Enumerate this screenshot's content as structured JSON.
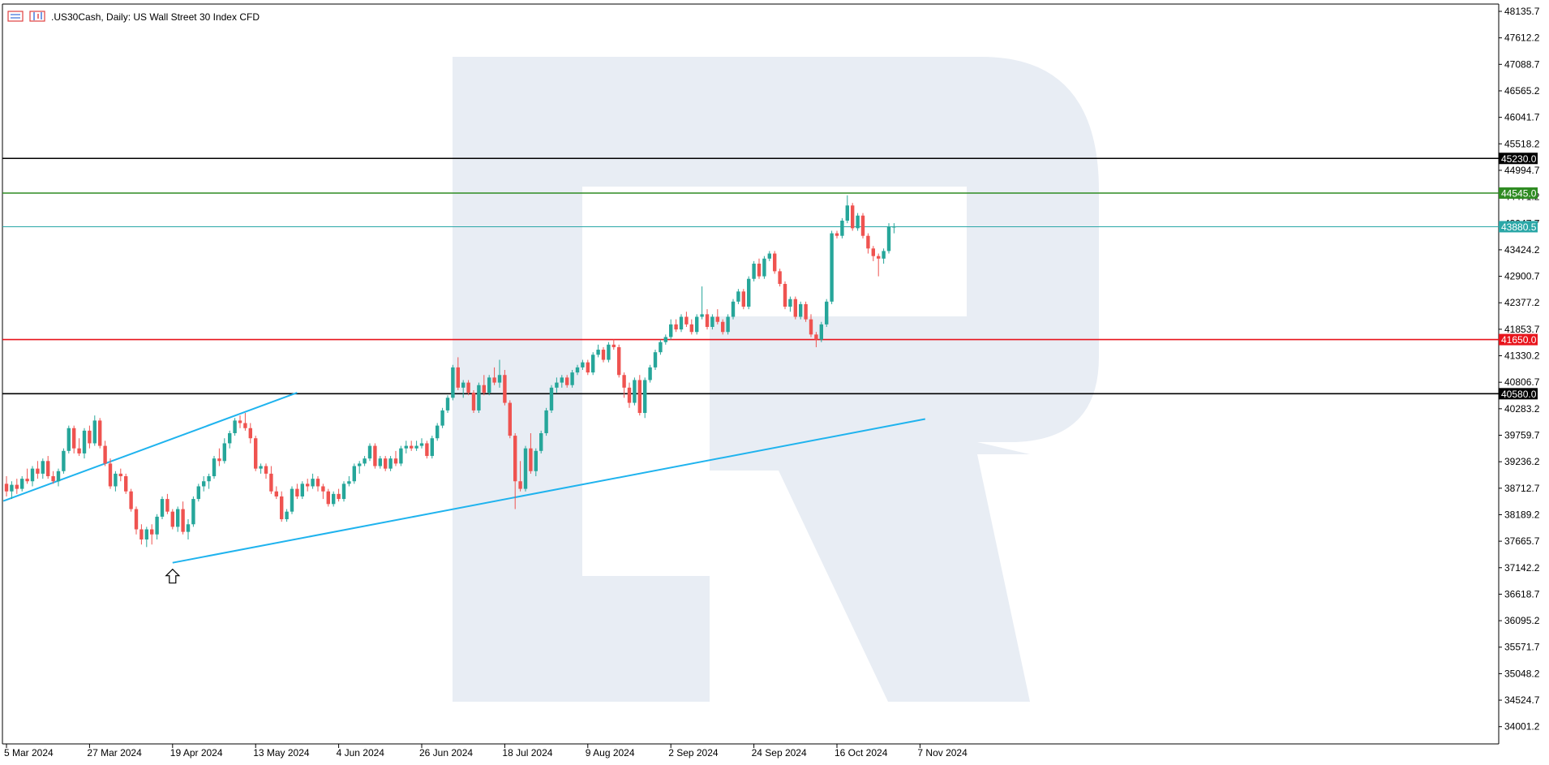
{
  "header": {
    "symbol_text": ".US30Cash, Daily:  US Wall Street 30 Index CFD"
  },
  "icons": {
    "menu": "chart-menu-icon",
    "chart_type": "chart-type-icon",
    "arrow": "up-arrow-icon",
    "watermark": "broker-logo-watermark"
  },
  "colors": {
    "background": "#ffffff",
    "bull": "#26a69a",
    "bear": "#ef5350",
    "trendline": "#1fb3ee",
    "watermark": "#e8edf4",
    "resistance": "#2e8b22",
    "support": "#e8141c",
    "key_level": "#000000",
    "current_price": "#2aa7a7"
  },
  "chart_data": {
    "type": "candlestick",
    "title": ".US30Cash, Daily:  US Wall Street 30 Index CFD",
    "xlabel": "",
    "ylabel": "",
    "ylim": [
      33660,
      48280
    ],
    "y_ticks": [
      "48135.7",
      "47612.2",
      "47088.7",
      "46565.2",
      "46041.7",
      "45518.2",
      "44994.7",
      "44471.2",
      "43947.7",
      "43424.2",
      "42900.7",
      "42377.2",
      "41853.7",
      "41330.2",
      "40806.7",
      "40283.2",
      "39759.7",
      "39236.2",
      "38712.7",
      "38189.2",
      "37665.7",
      "37142.2",
      "36618.7",
      "36095.2",
      "35571.7",
      "35048.2",
      "34524.7",
      "34001.2"
    ],
    "x_ticks": [
      {
        "label": "5 Mar 2024",
        "index": 0
      },
      {
        "label": "27 Mar 2024",
        "index": 16
      },
      {
        "label": "19 Apr 2024",
        "index": 32
      },
      {
        "label": "13 May 2024",
        "index": 48
      },
      {
        "label": "4 Jun 2024",
        "index": 64
      },
      {
        "label": "26 Jun 2024",
        "index": 80
      },
      {
        "label": "18 Jul 2024",
        "index": 96
      },
      {
        "label": "9 Aug 2024",
        "index": 112
      },
      {
        "label": "2 Sep 2024",
        "index": 128
      },
      {
        "label": "24 Sep 2024",
        "index": 144
      },
      {
        "label": "16 Oct 2024",
        "index": 160
      },
      {
        "label": "7 Nov 2024",
        "index": 176
      }
    ],
    "levels": [
      {
        "label": "45230.0",
        "value": 45230.0,
        "color": "#000000"
      },
      {
        "label": "44545.0",
        "value": 44545.0,
        "color": "#2e8b22"
      },
      {
        "label": "43880.5",
        "value": 43880.5,
        "color": "#2aa7a7"
      },
      {
        "label": "41650.0",
        "value": 41650.0,
        "color": "#e8141c"
      },
      {
        "label": "40580.0",
        "value": 40580.0,
        "color": "#000000"
      }
    ],
    "trendlines": [
      {
        "from": {
          "index": -0.6,
          "value": 38460
        },
        "to": {
          "index": 56,
          "value": 40600
        }
      },
      {
        "from": {
          "index": 32,
          "value": 37240
        },
        "to": {
          "index": 177,
          "value": 40080
        }
      }
    ],
    "marker": {
      "type": "up-arrow",
      "index": 32,
      "value": 37240
    },
    "candles": [
      [
        38800,
        38950,
        38550,
        38650
      ],
      [
        38650,
        38850,
        38500,
        38780
      ],
      [
        38780,
        38900,
        38600,
        38700
      ],
      [
        38700,
        38950,
        38650,
        38900
      ],
      [
        38900,
        39100,
        38800,
        38850
      ],
      [
        38850,
        39150,
        38750,
        39100
      ],
      [
        39100,
        39250,
        38900,
        39000
      ],
      [
        39000,
        39300,
        38900,
        39250
      ],
      [
        39250,
        39350,
        38900,
        38950
      ],
      [
        38950,
        39050,
        38800,
        38850
      ],
      [
        38850,
        39100,
        38750,
        39050
      ],
      [
        39050,
        39500,
        39000,
        39450
      ],
      [
        39450,
        39950,
        39400,
        39900
      ],
      [
        39900,
        39950,
        39400,
        39500
      ],
      [
        39500,
        39700,
        39350,
        39400
      ],
      [
        39400,
        39900,
        39300,
        39850
      ],
      [
        39850,
        39950,
        39500,
        39600
      ],
      [
        39600,
        40150,
        39550,
        40050
      ],
      [
        40050,
        40100,
        39500,
        39550
      ],
      [
        39550,
        39650,
        39150,
        39200
      ],
      [
        39200,
        39300,
        38700,
        38750
      ],
      [
        38750,
        39050,
        38650,
        39000
      ],
      [
        39000,
        39100,
        38850,
        38950
      ],
      [
        38950,
        39000,
        38600,
        38650
      ],
      [
        38650,
        38700,
        38250,
        38300
      ],
      [
        38300,
        38350,
        37800,
        37900
      ],
      [
        37900,
        38000,
        37600,
        37700
      ],
      [
        37700,
        37950,
        37550,
        37900
      ],
      [
        37900,
        38000,
        37600,
        37800
      ],
      [
        37800,
        38200,
        37700,
        38150
      ],
      [
        38150,
        38550,
        38100,
        38500
      ],
      [
        38500,
        38600,
        38200,
        38250
      ],
      [
        38250,
        38300,
        37900,
        37950
      ],
      [
        37950,
        38350,
        37850,
        38300
      ],
      [
        38300,
        38450,
        37800,
        37850
      ],
      [
        37850,
        38100,
        37700,
        38000
      ],
      [
        38000,
        38550,
        37950,
        38500
      ],
      [
        38500,
        38800,
        38450,
        38750
      ],
      [
        38750,
        38950,
        38650,
        38850
      ],
      [
        38850,
        39000,
        38700,
        38950
      ],
      [
        38950,
        39350,
        38900,
        39300
      ],
      [
        39300,
        39500,
        39150,
        39250
      ],
      [
        39250,
        39700,
        39200,
        39600
      ],
      [
        39600,
        39850,
        39500,
        39800
      ],
      [
        39800,
        40100,
        39750,
        40050
      ],
      [
        40050,
        40150,
        39900,
        40000
      ],
      [
        40000,
        40200,
        39850,
        39900
      ],
      [
        39900,
        40000,
        39600,
        39700
      ],
      [
        39700,
        39750,
        39050,
        39100
      ],
      [
        39100,
        39200,
        39000,
        39150
      ],
      [
        39150,
        39200,
        38900,
        39000
      ],
      [
        39000,
        39150,
        38600,
        38650
      ],
      [
        38650,
        38750,
        38500,
        38550
      ],
      [
        38550,
        38650,
        38050,
        38100
      ],
      [
        38100,
        38300,
        38050,
        38250
      ],
      [
        38250,
        38750,
        38200,
        38700
      ],
      [
        38700,
        38800,
        38500,
        38550
      ],
      [
        38550,
        38850,
        38500,
        38800
      ],
      [
        38800,
        38900,
        38650,
        38750
      ],
      [
        38750,
        39000,
        38700,
        38900
      ],
      [
        38900,
        38950,
        38650,
        38750
      ],
      [
        38750,
        38800,
        38500,
        38650
      ],
      [
        38650,
        38700,
        38350,
        38400
      ],
      [
        38400,
        38650,
        38350,
        38600
      ],
      [
        38600,
        38700,
        38450,
        38500
      ],
      [
        38500,
        38850,
        38450,
        38800
      ],
      [
        38800,
        38950,
        38750,
        38850
      ],
      [
        38850,
        39200,
        38800,
        39150
      ],
      [
        39150,
        39250,
        39000,
        39200
      ],
      [
        39200,
        39350,
        39150,
        39300
      ],
      [
        39300,
        39600,
        39250,
        39550
      ],
      [
        39550,
        39600,
        39100,
        39150
      ],
      [
        39150,
        39350,
        39100,
        39300
      ],
      [
        39300,
        39350,
        39050,
        39100
      ],
      [
        39100,
        39350,
        39050,
        39300
      ],
      [
        39300,
        39450,
        39150,
        39200
      ],
      [
        39200,
        39550,
        39150,
        39500
      ],
      [
        39500,
        39650,
        39400,
        39550
      ],
      [
        39550,
        39650,
        39450,
        39500
      ],
      [
        39500,
        39650,
        39450,
        39550
      ],
      [
        39550,
        39700,
        39500,
        39600
      ],
      [
        39600,
        39650,
        39300,
        39350
      ],
      [
        39350,
        39750,
        39300,
        39700
      ],
      [
        39700,
        40000,
        39650,
        39950
      ],
      [
        39950,
        40300,
        39900,
        40250
      ],
      [
        40250,
        40550,
        40200,
        40500
      ],
      [
        40500,
        41150,
        40450,
        41100
      ],
      [
        41100,
        41300,
        40650,
        40700
      ],
      [
        40700,
        40850,
        40500,
        40800
      ],
      [
        40800,
        40850,
        40550,
        40600
      ],
      [
        40600,
        40650,
        40200,
        40250
      ],
      [
        40250,
        40800,
        40200,
        40750
      ],
      [
        40750,
        40950,
        40550,
        40600
      ],
      [
        40600,
        40950,
        40550,
        40900
      ],
      [
        40900,
        41100,
        40750,
        40800
      ],
      [
        40800,
        41250,
        40700,
        40950
      ],
      [
        40950,
        41050,
        40350,
        40400
      ],
      [
        40400,
        40450,
        39700,
        39750
      ],
      [
        39750,
        39800,
        38300,
        38850
      ],
      [
        38850,
        39250,
        38650,
        38700
      ],
      [
        38700,
        39550,
        38650,
        39500
      ],
      [
        39500,
        39800,
        39000,
        39050
      ],
      [
        39050,
        39500,
        38950,
        39450
      ],
      [
        39450,
        39850,
        39400,
        39800
      ],
      [
        39800,
        40300,
        39750,
        40250
      ],
      [
        40250,
        40750,
        40200,
        40700
      ],
      [
        40700,
        40900,
        40600,
        40800
      ],
      [
        40800,
        40950,
        40700,
        40900
      ],
      [
        40900,
        40950,
        40700,
        40750
      ],
      [
        40750,
        41050,
        40700,
        41000
      ],
      [
        41000,
        41150,
        40950,
        41100
      ],
      [
        41100,
        41250,
        41050,
        41200
      ],
      [
        41200,
        41250,
        40950,
        41000
      ],
      [
        41000,
        41400,
        40950,
        41350
      ],
      [
        41350,
        41550,
        41300,
        41450
      ],
      [
        41450,
        41500,
        41200,
        41250
      ],
      [
        41250,
        41600,
        41200,
        41550
      ],
      [
        41550,
        41650,
        41450,
        41500
      ],
      [
        41500,
        41550,
        40900,
        40950
      ],
      [
        40950,
        41000,
        40500,
        40700
      ],
      [
        40700,
        40800,
        40300,
        40400
      ],
      [
        40400,
        40900,
        40350,
        40850
      ],
      [
        40850,
        40950,
        40150,
        40200
      ],
      [
        40200,
        40900,
        40100,
        40850
      ],
      [
        40850,
        41150,
        40800,
        41100
      ],
      [
        41100,
        41450,
        41050,
        41400
      ],
      [
        41400,
        41650,
        41350,
        41600
      ],
      [
        41600,
        41750,
        41550,
        41700
      ],
      [
        41700,
        42050,
        41650,
        41950
      ],
      [
        41950,
        42050,
        41800,
        41850
      ],
      [
        41850,
        42150,
        41800,
        42100
      ],
      [
        42100,
        42200,
        41900,
        41950
      ],
      [
        41950,
        42050,
        41750,
        41800
      ],
      [
        41800,
        42150,
        41750,
        42100
      ],
      [
        42100,
        42700,
        42050,
        42150
      ],
      [
        42150,
        42250,
        41850,
        41900
      ],
      [
        41900,
        42150,
        41850,
        42100
      ],
      [
        42100,
        42250,
        41950,
        42000
      ],
      [
        42000,
        42050,
        41750,
        41800
      ],
      [
        41800,
        42150,
        41750,
        42100
      ],
      [
        42100,
        42450,
        42050,
        42400
      ],
      [
        42400,
        42650,
        42350,
        42600
      ],
      [
        42600,
        42650,
        42250,
        42300
      ],
      [
        42300,
        42900,
        42250,
        42850
      ],
      [
        42850,
        43200,
        42800,
        43150
      ],
      [
        43150,
        43250,
        42850,
        42900
      ],
      [
        42900,
        43300,
        42850,
        43250
      ],
      [
        43250,
        43400,
        43200,
        43350
      ],
      [
        43350,
        43400,
        42950,
        43000
      ],
      [
        43000,
        43050,
        42700,
        42750
      ],
      [
        42750,
        42800,
        42250,
        42300
      ],
      [
        42300,
        42500,
        42200,
        42450
      ],
      [
        42450,
        42500,
        42050,
        42100
      ],
      [
        42100,
        42400,
        42050,
        42350
      ],
      [
        42350,
        42400,
        42000,
        42050
      ],
      [
        42050,
        42150,
        41700,
        41750
      ],
      [
        41750,
        41800,
        41500,
        41650
      ],
      [
        41650,
        42000,
        41600,
        41950
      ],
      [
        41950,
        42450,
        41900,
        42400
      ],
      [
        42400,
        43800,
        42350,
        43750
      ],
      [
        43750,
        43800,
        43650,
        43700
      ],
      [
        43700,
        44050,
        43650,
        44000
      ],
      [
        44000,
        44500,
        43950,
        44300
      ],
      [
        44300,
        44350,
        43800,
        43850
      ],
      [
        43850,
        44150,
        43800,
        44100
      ],
      [
        44100,
        44150,
        43650,
        43700
      ],
      [
        43700,
        43750,
        43350,
        43450
      ],
      [
        43450,
        43500,
        43200,
        43300
      ],
      [
        43300,
        43350,
        42900,
        43250
      ],
      [
        43250,
        43450,
        43150,
        43400
      ],
      [
        43400,
        43950,
        43350,
        43880.5
      ],
      [
        43880.5,
        43950,
        43750,
        43880.5
      ]
    ]
  }
}
